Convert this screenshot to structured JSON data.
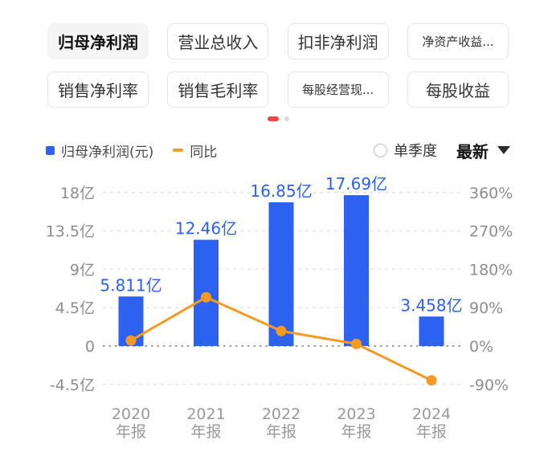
{
  "colors": {
    "bar": "#2D62F0",
    "bar_label": "#2D62F0",
    "line": "#F79A23",
    "axis_text": "#8E8E8E",
    "x_label": "#999999",
    "grid": "#E3E3E3",
    "zero_line": "#9C9C9C",
    "active_dot": "#F0483E",
    "inactive_dot": "#D9D9D9"
  },
  "tabs": {
    "rows": [
      [
        {
          "label": "归母净利润",
          "selected": true,
          "small": false
        },
        {
          "label": "营业总收入",
          "selected": false,
          "small": false
        },
        {
          "label": "扣非净利润",
          "selected": false,
          "small": false
        },
        {
          "label": "净资产收益...",
          "selected": false,
          "small": true
        }
      ],
      [
        {
          "label": "销售净利率",
          "selected": false,
          "small": false
        },
        {
          "label": "销售毛利率",
          "selected": false,
          "small": false
        },
        {
          "label": "每股经营现...",
          "selected": false,
          "small": true
        },
        {
          "label": "每股收益",
          "selected": false,
          "small": false
        }
      ]
    ]
  },
  "carousel": {
    "dot_count": 2,
    "active_index": 0
  },
  "legend": {
    "series1": "归母净利润(元)",
    "series2": "同比"
  },
  "controls": {
    "single_quarter": "单季度",
    "latest": "最新"
  },
  "chart_data": {
    "type": "combo_bar_line",
    "categories": [
      [
        "2020",
        "年报"
      ],
      [
        "2021",
        "年报"
      ],
      [
        "2022",
        "年报"
      ],
      [
        "2023",
        "年报"
      ],
      [
        "2024",
        "年报"
      ]
    ],
    "series": [
      {
        "name": "归母净利润(元)",
        "type": "bar",
        "axis": "left",
        "unit": "亿",
        "values": [
          5.811,
          12.46,
          16.85,
          17.69,
          3.458
        ],
        "labels": [
          "5.811亿",
          "12.46亿",
          "16.85亿",
          "17.69亿",
          "3.458亿"
        ]
      },
      {
        "name": "同比",
        "type": "line",
        "axis": "right",
        "unit": "%",
        "values": [
          13,
          114.4,
          35.2,
          5,
          -80.5
        ]
      }
    ],
    "left_axis": {
      "ticks": [
        "18亿",
        "13.5亿",
        "9亿",
        "4.5亿",
        "0",
        "-4.5亿"
      ],
      "values": [
        18,
        13.5,
        9,
        4.5,
        0,
        -4.5
      ],
      "range": [
        -4.5,
        18
      ]
    },
    "right_axis": {
      "ticks": [
        "360%",
        "270%",
        "180%",
        "90%",
        "0%",
        "-90%"
      ],
      "values": [
        360,
        270,
        180,
        90,
        0,
        -90
      ],
      "range": [
        -90,
        360
      ]
    },
    "grid": "dashed horizontal, dotted zero line",
    "legend_position": "top-left"
  }
}
